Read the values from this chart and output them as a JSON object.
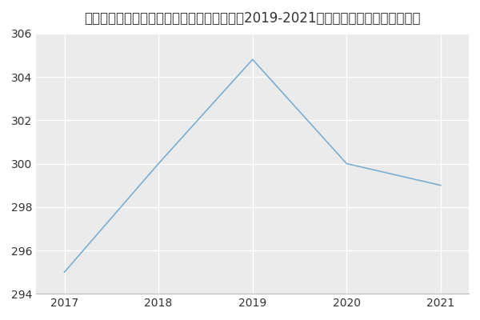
{
  "title": "内蒙古医科大学中医临床医学院中医内科学（2019-2021历年复试）研究生录取分数线",
  "x": [
    2017,
    2018,
    2019,
    2020,
    2021
  ],
  "y": [
    295,
    300,
    304.8,
    300,
    299
  ],
  "line_color": "#7aafd4",
  "fig_bg_color": "#ffffff",
  "plot_bg_color": "#ebebeb",
  "ylim": [
    294,
    306
  ],
  "xlim": [
    2016.7,
    2021.3
  ],
  "yticks": [
    294,
    296,
    298,
    300,
    302,
    304,
    306
  ],
  "xticks": [
    2017,
    2018,
    2019,
    2020,
    2021
  ],
  "title_fontsize": 12,
  "tick_fontsize": 10,
  "grid_color": "#ffffff",
  "grid_linewidth": 1.0,
  "line_width": 1.2
}
